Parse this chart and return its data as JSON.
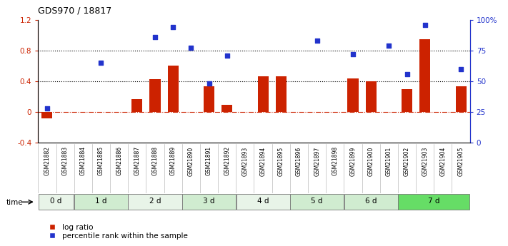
{
  "title": "GDS970 / 18817",
  "samples": [
    "GSM21882",
    "GSM21883",
    "GSM21884",
    "GSM21885",
    "GSM21886",
    "GSM21887",
    "GSM21888",
    "GSM21889",
    "GSM21890",
    "GSM21891",
    "GSM21892",
    "GSM21893",
    "GSM21894",
    "GSM21895",
    "GSM21896",
    "GSM21897",
    "GSM21898",
    "GSM21899",
    "GSM21900",
    "GSM21901",
    "GSM21902",
    "GSM21903",
    "GSM21904",
    "GSM21905"
  ],
  "log_ratio": [
    -0.08,
    0.0,
    0.0,
    0.0,
    0.0,
    0.17,
    0.43,
    0.6,
    0.0,
    0.33,
    0.09,
    0.0,
    0.46,
    0.46,
    0.0,
    0.0,
    0.0,
    0.44,
    0.4,
    0.0,
    0.3,
    0.95,
    0.0,
    0.33
  ],
  "percentile_rank": [
    28,
    0,
    0,
    65,
    0,
    0,
    86,
    94,
    77,
    48,
    71,
    0,
    0,
    0,
    0,
    83,
    0,
    72,
    0,
    79,
    56,
    96,
    0,
    60
  ],
  "time_groups": [
    {
      "label": "0 d",
      "start": 0,
      "end": 2,
      "color": "#e8f4e8"
    },
    {
      "label": "1 d",
      "start": 2,
      "end": 5,
      "color": "#d0ecd0"
    },
    {
      "label": "2 d",
      "start": 5,
      "end": 8,
      "color": "#e8f4e8"
    },
    {
      "label": "3 d",
      "start": 8,
      "end": 11,
      "color": "#d0ecd0"
    },
    {
      "label": "4 d",
      "start": 11,
      "end": 14,
      "color": "#e8f4e8"
    },
    {
      "label": "5 d",
      "start": 14,
      "end": 17,
      "color": "#d0ecd0"
    },
    {
      "label": "6 d",
      "start": 17,
      "end": 20,
      "color": "#d0ecd0"
    },
    {
      "label": "7 d",
      "start": 20,
      "end": 24,
      "color": "#66dd66"
    }
  ],
  "sample_bg_color": "#cccccc",
  "ylim_left": [
    -0.4,
    1.2
  ],
  "ylim_right": [
    0,
    100
  ],
  "bar_color": "#cc2200",
  "dot_color": "#2233cc",
  "right_ticks": [
    0,
    25,
    50,
    75,
    100
  ],
  "right_tick_labels": [
    "0",
    "25",
    "50",
    "75",
    "100%"
  ],
  "left_ticks": [
    -0.4,
    0.0,
    0.4,
    0.8,
    1.2
  ],
  "left_tick_labels": [
    "-0.4",
    "0",
    "0.4",
    "0.8",
    "1.2"
  ],
  "legend_log_ratio": "log ratio",
  "legend_percentile": "percentile rank within the sample"
}
